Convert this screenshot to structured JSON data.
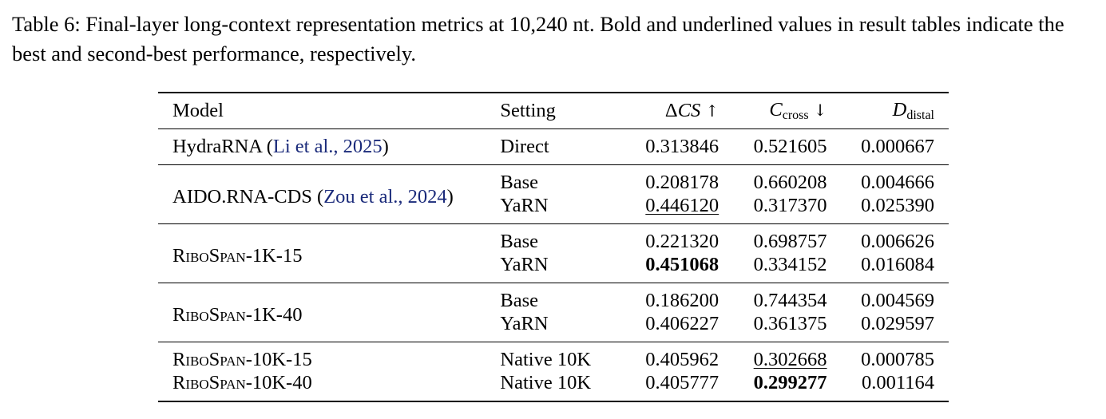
{
  "caption": {
    "lead": "Table 6: Final-layer long-context representation metrics at 10,240 nt. Bold and underlined values in result tables indicate the best and second-best performance, respectively."
  },
  "table": {
    "headers": {
      "model": "Model",
      "setting": "Setting",
      "delta_cs_prefix": "Δ",
      "delta_cs_var": "CS",
      "delta_cs_arrow": "↑",
      "c_cross_var": "C",
      "c_cross_sub": "cross",
      "c_cross_arrow": "↓",
      "d_distal_var": "D",
      "d_distal_sub": "distal"
    },
    "groups": [
      {
        "model_name": "HydraRNA",
        "cite_open": " (",
        "cite_text": "Li et al., 2025",
        "cite_close": ")",
        "rows": [
          {
            "setting": "Direct",
            "delta_cs": "0.313846",
            "c_cross": "0.521605",
            "d_distal": "0.000667"
          }
        ]
      },
      {
        "model_name": "AIDO.RNA-CDS",
        "cite_open": " (",
        "cite_text": "Zou et al., 2024",
        "cite_close": ")",
        "rows": [
          {
            "setting": "Base",
            "delta_cs": "0.208178",
            "c_cross": "0.660208",
            "d_distal": "0.004666"
          },
          {
            "setting": "YaRN",
            "delta_cs": "0.446120",
            "c_cross": "0.317370",
            "d_distal": "0.025390"
          }
        ]
      },
      {
        "model_name": "RiboSpan-1K-15",
        "rows": [
          {
            "setting": "Base",
            "delta_cs": "0.221320",
            "c_cross": "0.698757",
            "d_distal": "0.006626"
          },
          {
            "setting": "YaRN",
            "delta_cs": "0.451068",
            "c_cross": "0.334152",
            "d_distal": "0.016084"
          }
        ]
      },
      {
        "model_name": "RiboSpan-1K-40",
        "rows": [
          {
            "setting": "Base",
            "delta_cs": "0.186200",
            "c_cross": "0.744354",
            "d_distal": "0.004569"
          },
          {
            "setting": "YaRN",
            "delta_cs": "0.406227",
            "c_cross": "0.361375",
            "d_distal": "0.029597"
          }
        ]
      },
      {
        "rows": [
          {
            "model": "RiboSpan-10K-15",
            "setting": "Native 10K",
            "delta_cs": "0.405962",
            "c_cross": "0.302668",
            "d_distal": "0.000785"
          },
          {
            "model": "RiboSpan-10K-40",
            "setting": "Native 10K",
            "delta_cs": "0.405777",
            "c_cross": "0.299277",
            "d_distal": "0.001164"
          }
        ]
      }
    ]
  }
}
